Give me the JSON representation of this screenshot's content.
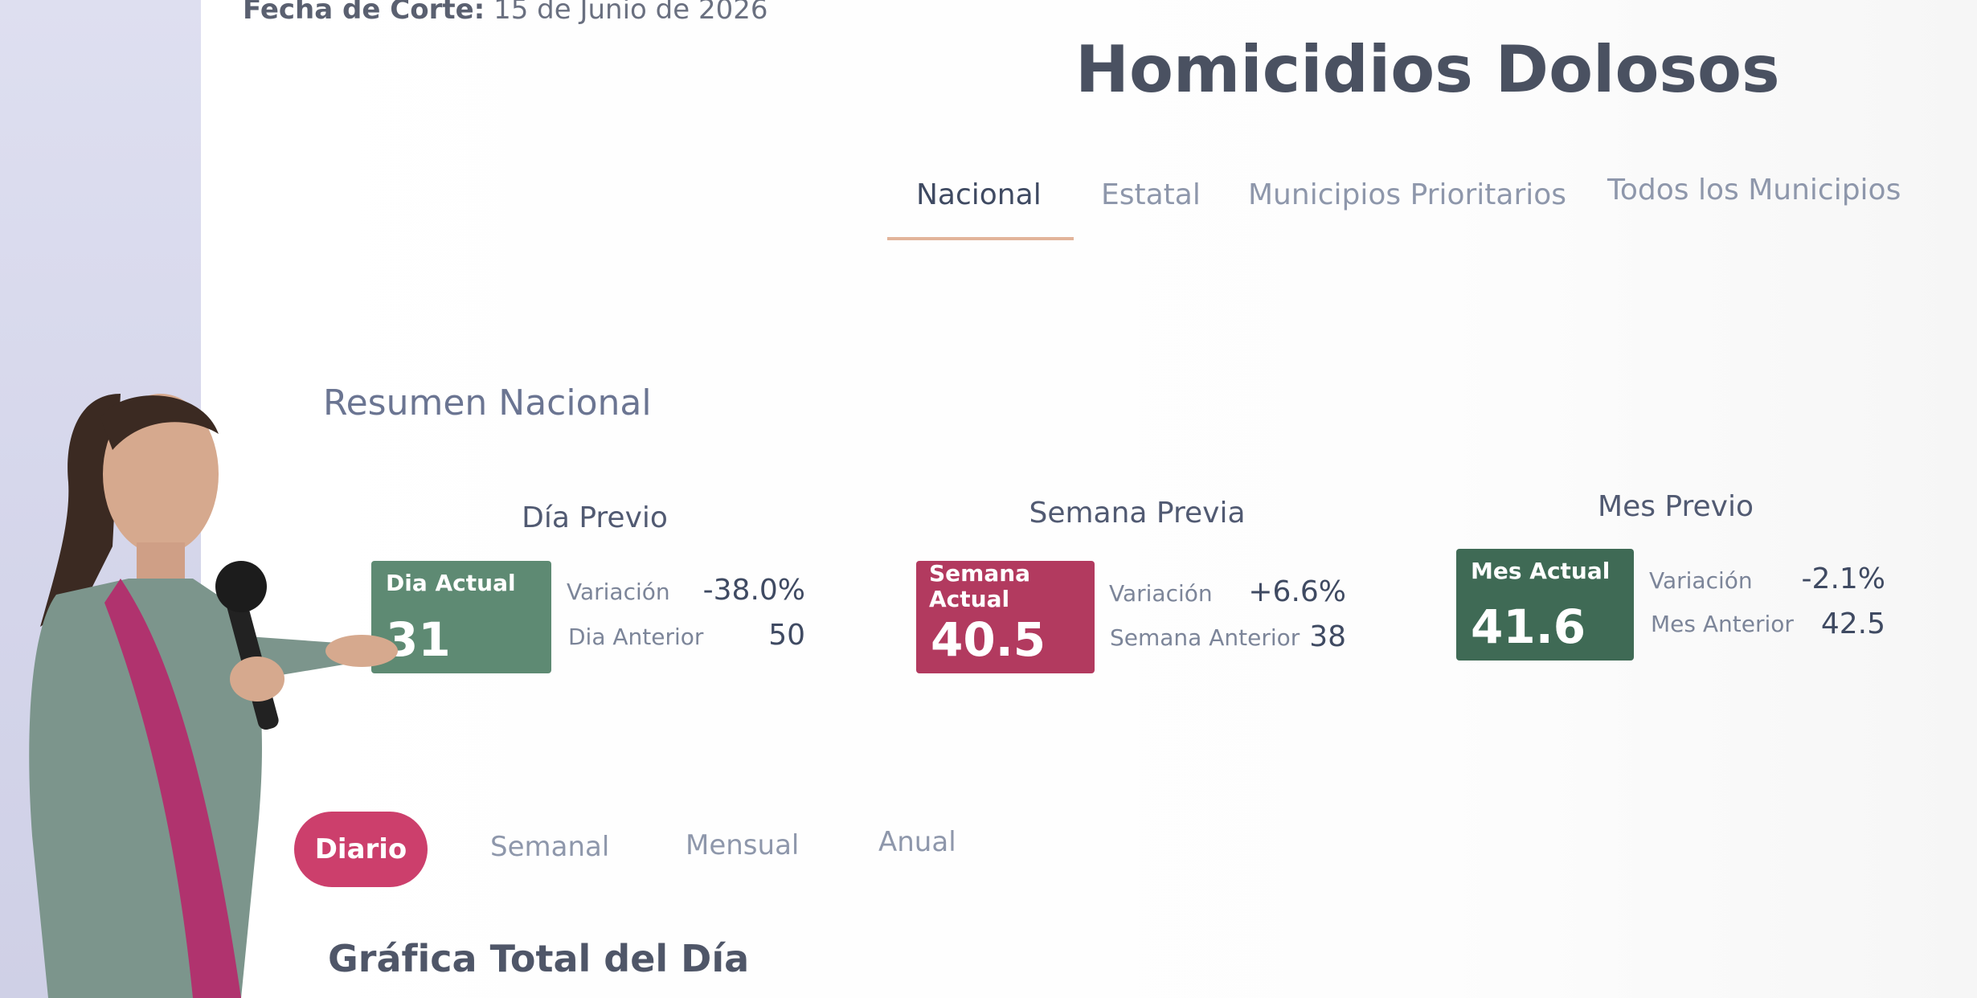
{
  "header": {
    "date_label": "Fecha de Corte:",
    "date": "15 de Junio de 2026",
    "title": "Homicidios Dolosos"
  },
  "tabs": [
    "Nacional",
    "Estatal",
    "Municipios Prioritarios",
    "Todos los Municipios"
  ],
  "summary": {
    "title": "Resumen Nacional",
    "cards": [
      {
        "heading": "Día Previo",
        "badge": "Dia Actual",
        "value": "31",
        "variation_label": "Variación",
        "variation": "-38.0%",
        "previous_label": "Dia Anterior",
        "previous": "50"
      },
      {
        "heading": "Semana Previa",
        "badge": "Semana Actual",
        "value": "40.5",
        "variation_label": "Variación",
        "variation": "+6.6%",
        "previous_label": "Semana Anterior",
        "previous": "38"
      },
      {
        "heading": "Mes Previo",
        "badge": "Mes Actual",
        "value": "41.6",
        "variation_label": "Variación",
        "variation": "-2.1%",
        "previous_label": "Mes Anterior",
        "previous": "42.5"
      }
    ]
  },
  "period_tabs": [
    "Diario",
    "Semanal",
    "Mensual",
    "Anual"
  ],
  "chart_title": "Gráfica Total del Día"
}
